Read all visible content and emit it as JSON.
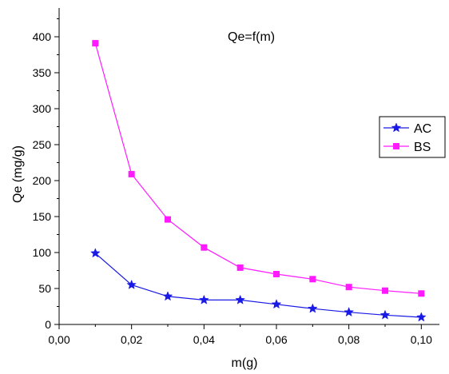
{
  "chart_data": {
    "type": "line",
    "annotation": "Qe=f(m)",
    "xlabel": "m(g)",
    "ylabel": "Qe (mg/g)",
    "xlim": [
      0.0,
      0.105
    ],
    "ylim": [
      0,
      440
    ],
    "x_ticks": [
      0.0,
      0.02,
      0.04,
      0.06,
      0.08,
      0.1
    ],
    "x_tick_labels": [
      "0,00",
      "0,02",
      "0,04",
      "0,06",
      "0,08",
      "0,10"
    ],
    "y_ticks": [
      0,
      50,
      100,
      150,
      200,
      250,
      300,
      350,
      400
    ],
    "y_tick_labels": [
      "0",
      "50",
      "100",
      "150",
      "200",
      "250",
      "300",
      "350",
      "400"
    ],
    "grid": false,
    "legend_position": "right",
    "x": [
      0.01,
      0.02,
      0.03,
      0.04,
      0.05,
      0.06,
      0.07,
      0.08,
      0.09,
      0.1
    ],
    "series": [
      {
        "name": "AC",
        "marker": "star",
        "color": "#1a1ae6",
        "values": [
          99,
          55,
          39,
          34,
          34,
          28,
          22,
          17,
          13,
          10
        ]
      },
      {
        "name": "BS",
        "marker": "square",
        "color": "#ff1aff",
        "values": [
          391,
          209,
          146,
          107,
          79,
          70,
          63,
          52,
          47,
          43
        ]
      }
    ]
  }
}
